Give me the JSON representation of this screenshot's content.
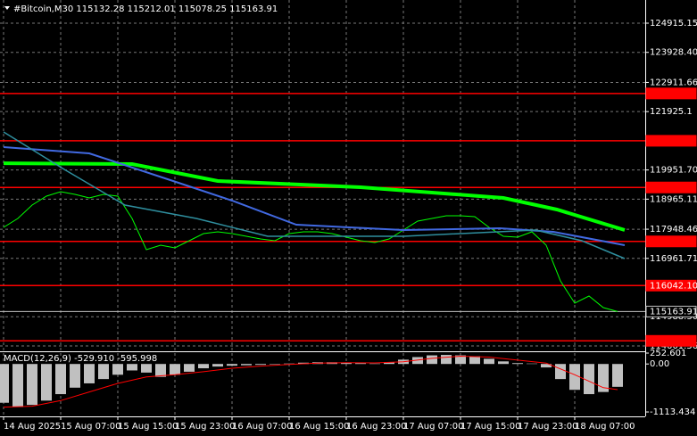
{
  "chart_data": [
    {
      "type": "line",
      "title": "#Bitcoin,M30  115132.28 115212.01 115078.25 115163.91",
      "xlim": [
        0,
        180
      ],
      "ylim": [
        113850,
        125699
      ],
      "yticks": [
        124915.15,
        {
          "value": 123928.4,
          "label": "123928.40"
        },
        122911.66,
        121925.1,
        {
          "value": 119951.7,
          "label": "119951.70"
        },
        118965.11,
        117948.46,
        116961.71,
        {
          "value": 114988.3,
          "label": "114988.30"
        },
        114001.56
      ],
      "xticks": [
        {
          "value": 0,
          "label": "14 Aug 2025"
        },
        {
          "value": 16,
          "label": "15 Aug 07:00"
        },
        {
          "value": 32,
          "label": "15 Aug 15:00"
        },
        {
          "value": 48,
          "label": "15 Aug 23:00"
        },
        {
          "value": 64,
          "label": "16 Aug 07:00"
        },
        {
          "value": 80,
          "label": "16 Aug 15:00"
        },
        {
          "value": 96,
          "label": "16 Aug 23:00"
        },
        {
          "value": 112,
          "label": "17 Aug 07:00"
        },
        {
          "value": 128,
          "label": "17 Aug 15:00"
        },
        {
          "value": 144,
          "label": "17 Aug 23:00"
        },
        {
          "value": 160,
          "label": "18 Aug 07:00"
        }
      ],
      "grid": true,
      "levels": [
        {
          "value": 122538.12,
          "color": "#ff0000"
        },
        {
          "value": 120938.18,
          "color": "#ff0000"
        },
        {
          "value": 119359.82,
          "color": "#ff0000"
        },
        {
          "value": 117535.66,
          "color": "#ff0000"
        },
        {
          "value": 116042.1,
          "label": "116042.10",
          "color": "#ff0000"
        },
        {
          "value": 114172.71,
          "color": "#ff0000"
        }
      ],
      "last": {
        "value": 115163.91,
        "color": "#c0c0c0"
      },
      "series": [
        {
          "color": "#00ff00",
          "line_width": 1,
          "x": [
            0,
            4,
            8,
            12,
            16,
            20,
            24,
            28,
            32,
            36,
            40,
            44,
            48,
            52,
            56,
            60,
            64,
            68,
            72,
            76,
            80,
            84,
            88,
            92,
            96,
            100,
            104,
            108,
            112,
            116,
            120,
            124,
            128,
            132,
            136,
            140,
            144,
            148,
            152,
            156,
            160,
            164,
            168,
            172
          ],
          "values": [
            118011,
            118312,
            118764,
            119066,
            119217,
            119126,
            119006,
            119126,
            119066,
            118312,
            117257,
            117408,
            117317,
            117558,
            117800,
            117860,
            117800,
            117709,
            117619,
            117558,
            117800,
            117860,
            117860,
            117800,
            117679,
            117558,
            117498,
            117619,
            117920,
            118222,
            118312,
            118403,
            118403,
            118373,
            118011,
            117709,
            117679,
            117860,
            117408,
            116200,
            115448,
            115689,
            115297,
            115164
          ]
        },
        {
          "color": "#00ff00",
          "line_width": 4,
          "x": [
            0,
            36,
            60,
            100,
            140,
            155,
            174
          ],
          "values": [
            120180,
            120150,
            119579,
            119367,
            119006,
            118613,
            117920
          ]
        },
        {
          "color": "#4169e1",
          "line_width": 2,
          "x": [
            0,
            24,
            49,
            64,
            82,
            112,
            139,
            154,
            174
          ],
          "values": [
            120724,
            120513,
            119518,
            118915,
            118101,
            117920,
            117980,
            117860,
            117408
          ]
        },
        {
          "color": "#2f8f9f",
          "line_width": 1.5,
          "x": [
            0,
            17,
            34,
            54,
            74,
            112,
            149,
            162,
            174
          ],
          "values": [
            121237,
            119971,
            118764,
            118312,
            117709,
            117709,
            117920,
            117558,
            116956
          ]
        }
      ]
    },
    {
      "type": "bar",
      "title": "MACD(12,26,9) -529.910 -595.998",
      "xlim": [
        0,
        180
      ],
      "ylim": [
        -1216,
        252.601
      ],
      "yticks": [
        252.601,
        {
          "value": 0,
          "label": "0.00"
        },
        -1113.434
      ],
      "series": [
        {
          "type": "bar",
          "color": "#c0c0c0",
          "x": [
            0,
            4,
            8,
            12,
            16,
            20,
            24,
            28,
            32,
            36,
            40,
            44,
            48,
            52,
            56,
            60,
            64,
            68,
            72,
            76,
            80,
            84,
            88,
            92,
            96,
            100,
            104,
            108,
            112,
            116,
            120,
            124,
            128,
            132,
            136,
            140,
            144,
            148,
            152,
            156,
            160,
            164,
            168,
            172
          ],
          "values": [
            -900,
            -1000,
            -950,
            -850,
            -700,
            -550,
            -450,
            -350,
            -250,
            -150,
            -200,
            -300,
            -250,
            -180,
            -100,
            -60,
            -40,
            -30,
            -20,
            -10,
            10,
            30,
            40,
            40,
            30,
            20,
            10,
            40,
            100,
            160,
            200,
            210,
            200,
            180,
            120,
            60,
            20,
            10,
            -80,
            -350,
            -600,
            -700,
            -650,
            -530
          ]
        },
        {
          "type": "line",
          "color": "#ff0000",
          "x": [
            0,
            8,
            16,
            24,
            32,
            40,
            48,
            56,
            64,
            72,
            80,
            88,
            96,
            104,
            112,
            120,
            128,
            136,
            144,
            152,
            160,
            168,
            172
          ],
          "values": [
            -1000,
            -980,
            -850,
            -650,
            -450,
            -300,
            -250,
            -180,
            -100,
            -50,
            -10,
            20,
            30,
            25,
            50,
            130,
            180,
            160,
            90,
            20,
            -250,
            -550,
            -596
          ]
        }
      ]
    }
  ]
}
